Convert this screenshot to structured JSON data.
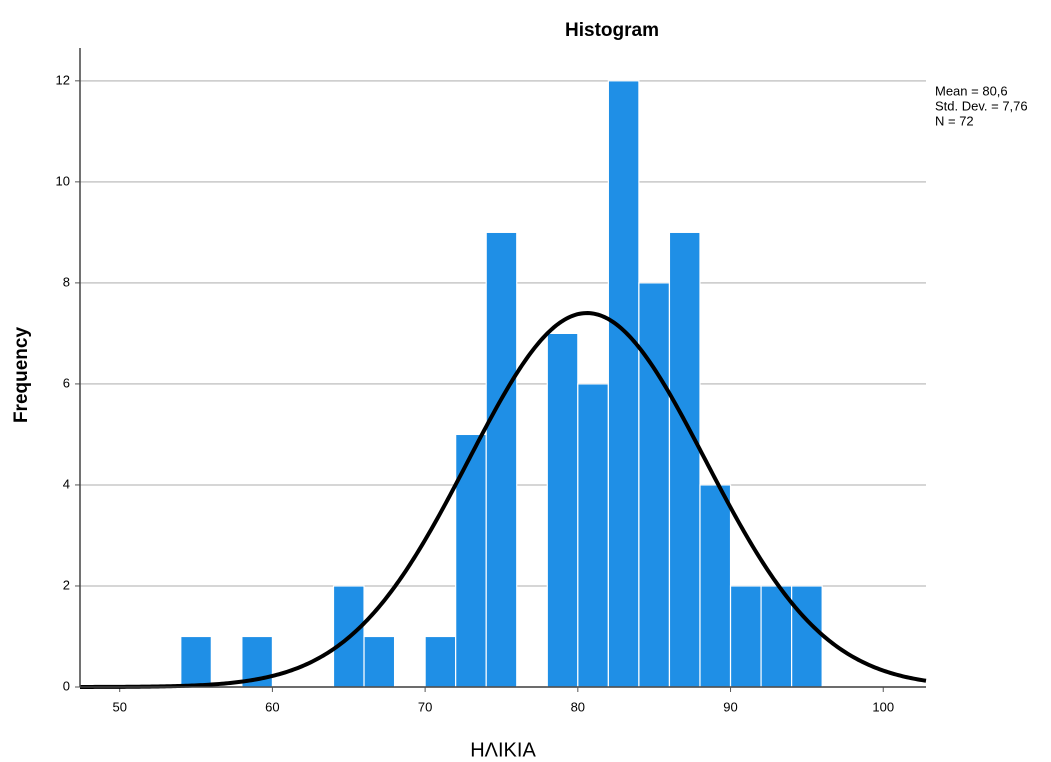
{
  "chart_data": {
    "type": "histogram",
    "title": "Histogram",
    "x_label": "ΗΛΙΚΙΑ",
    "y_label": "Frequency",
    "bins": [
      54,
      56,
      58,
      60,
      62,
      64,
      66,
      68,
      70,
      72,
      74,
      76,
      78,
      80,
      82,
      84,
      86,
      88,
      90,
      92,
      94,
      96
    ],
    "values": [
      1,
      0,
      1,
      0,
      0,
      2,
      1,
      0,
      1,
      5,
      9,
      0,
      7,
      6,
      12,
      8,
      9,
      4,
      2,
      2,
      2
    ],
    "color": "#1f8fe6",
    "xlim": [
      47.4,
      102.8
    ],
    "xticks": [
      50,
      60,
      70,
      80,
      90,
      100
    ],
    "ylim": [
      0,
      12.65
    ],
    "yticks": [
      0,
      2,
      4,
      6,
      8,
      10,
      12
    ],
    "grid": true,
    "stats": [
      {
        "value": 80.6,
        "label": "Mean = 80,6"
      },
      {
        "value": 7.76,
        "label": "Std. Dev. = 7,76"
      },
      {
        "value": 72,
        "label": "N = 72"
      }
    ],
    "curve_color": "#000000"
  }
}
